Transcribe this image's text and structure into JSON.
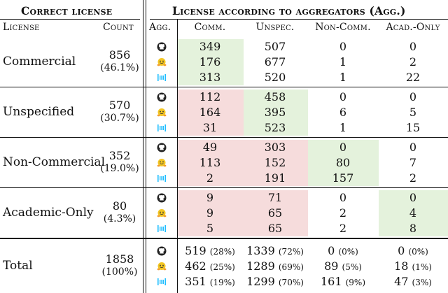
{
  "header": {
    "correct_license": "Correct license",
    "license_agg": "License according to aggregators (Agg.)",
    "col_license": "License",
    "col_count": "Count",
    "col_agg": "Agg.",
    "col_comm": "Comm.",
    "col_unspec": "Unspec.",
    "col_noncomm": "Non-Comm.",
    "col_acad": "Acad.-Only"
  },
  "colors": {
    "match": "#e4f2dc",
    "mismatch": "#f6dcdc",
    "hf_yellow": "#f3c623",
    "kaggle_cyan": "#20beff"
  },
  "aggregator_icons": [
    "github-icon",
    "huggingface-icon",
    "paperswithcode-icon"
  ],
  "groups": [
    {
      "license": "Commercial",
      "count": "856",
      "share": "(46.1%)",
      "rows": [
        [
          "349",
          "507",
          "0",
          "0"
        ],
        [
          "176",
          "677",
          "1",
          "2"
        ],
        [
          "313",
          "520",
          "1",
          "22"
        ]
      ]
    },
    {
      "license": "Unspecified",
      "count": "570",
      "share": "(30.7%)",
      "rows": [
        [
          "112",
          "458",
          "0",
          "0"
        ],
        [
          "164",
          "395",
          "6",
          "5"
        ],
        [
          "31",
          "523",
          "1",
          "15"
        ]
      ]
    },
    {
      "license": "Non-Commercial",
      "count": "352",
      "share": "(19.0%)",
      "rows": [
        [
          "49",
          "303",
          "0",
          "0"
        ],
        [
          "113",
          "152",
          "80",
          "7"
        ],
        [
          "2",
          "191",
          "157",
          "2"
        ]
      ]
    },
    {
      "license": "Academic-Only",
      "count": "80",
      "share": "(4.3%)",
      "rows": [
        [
          "9",
          "71",
          "0",
          "0"
        ],
        [
          "9",
          "65",
          "2",
          "4"
        ],
        [
          "5",
          "65",
          "2",
          "8"
        ]
      ]
    }
  ],
  "total": {
    "license": "Total",
    "count": "1858",
    "share": "(100%)",
    "rows": [
      [
        [
          "519",
          "(28%)"
        ],
        [
          "1339",
          "(72%)"
        ],
        [
          "0",
          "(0%)"
        ],
        [
          "0",
          "(0%)"
        ]
      ],
      [
        [
          "462",
          "(25%)"
        ],
        [
          "1289",
          "(69%)"
        ],
        [
          "89",
          "(5%)"
        ],
        [
          "18",
          "(1%)"
        ]
      ],
      [
        [
          "351",
          "(19%)"
        ],
        [
          "1299",
          "(70%)"
        ],
        [
          "161",
          "(9%)"
        ],
        [
          "47",
          "(3%)"
        ]
      ]
    ]
  }
}
